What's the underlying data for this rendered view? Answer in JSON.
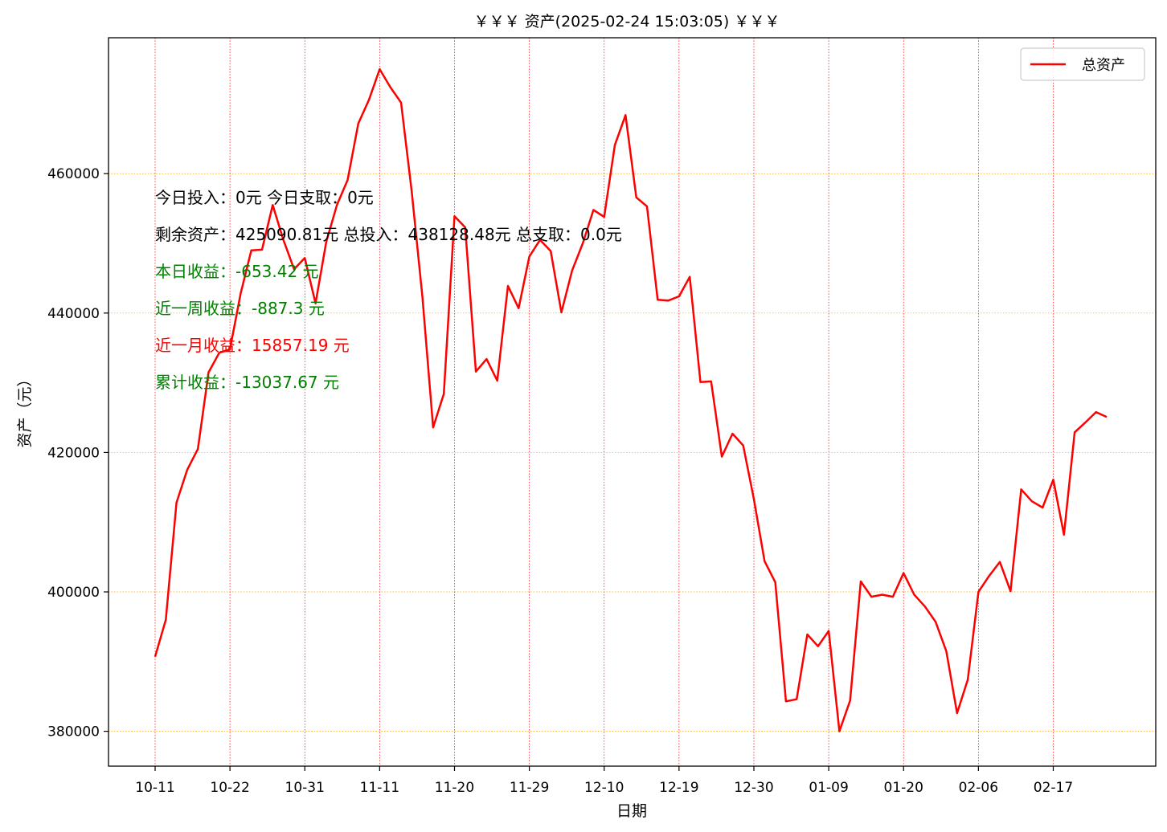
{
  "chart_data": {
    "type": "line",
    "title": "￥￥￥ 资产(2025-02-24 15:03:05) ￥￥￥",
    "xlabel": "日期",
    "ylabel": "资产（元）",
    "ylim": [
      375000,
      479500
    ],
    "grid": true,
    "legend_position": "top-right",
    "x_tick_labels": [
      "10-11",
      "10-22",
      "10-31",
      "11-11",
      "11-20",
      "11-29",
      "12-10",
      "12-19",
      "12-30",
      "01-09",
      "01-20",
      "02-06",
      "02-17"
    ],
    "y_ticks": [
      380000,
      400000,
      420000,
      440000,
      460000
    ],
    "series": [
      {
        "name": "总资产",
        "color": "#ff0000",
        "values": [
          390700,
          396000,
          412800,
          417500,
          420500,
          431500,
          434300,
          434800,
          442800,
          449000,
          449100,
          455500,
          450500,
          446300,
          447900,
          441400,
          450200,
          455500,
          459100,
          467200,
          470600,
          475000,
          472400,
          470200,
          457400,
          442300,
          423600,
          428400,
          453900,
          452300,
          431600,
          433400,
          430300,
          443900,
          440700,
          448100,
          450500,
          448900,
          440100,
          446100,
          450000,
          454800,
          453800,
          464100,
          468400,
          456600,
          455300,
          441900,
          441800,
          442400,
          445200,
          430100,
          430200,
          419400,
          422700,
          421000,
          413300,
          404400,
          401400,
          384300,
          384600,
          393900,
          392200,
          394400,
          380000,
          384400,
          401500,
          399300,
          399600,
          399300,
          402700,
          399600,
          397900,
          395700,
          391500,
          382600,
          387400,
          400000,
          402300,
          404300,
          400100,
          414700,
          413000,
          412100,
          416100,
          408200,
          422900,
          424300,
          425800,
          425100
        ]
      }
    ]
  },
  "annotations": [
    {
      "text": "今日投入：0元 今日支取：0元",
      "color": "#000000"
    },
    {
      "text": "剩余资产：425090.81元 总投入：438128.48元  总支取：0.0元",
      "color": "#000000"
    },
    {
      "text": "本日收益：-653.42 元",
      "color": "#008000"
    },
    {
      "text": "近一周收益：-887.3 元",
      "color": "#008000"
    },
    {
      "text": "近一月收益：15857.19 元",
      "color": "#ff0000"
    },
    {
      "text": "累计收益：-13037.67 元",
      "color": "#008000"
    }
  ]
}
